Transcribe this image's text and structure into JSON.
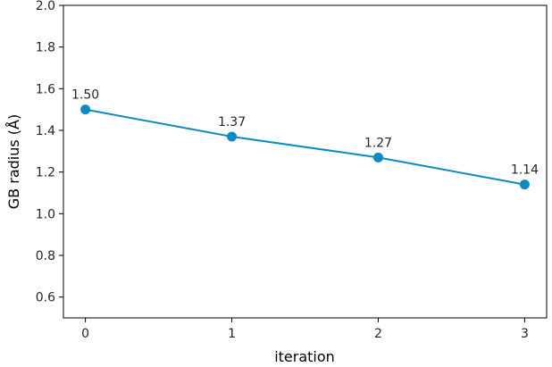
{
  "chart_data": {
    "type": "line",
    "title": "",
    "xlabel": "iteration",
    "ylabel": "GB radius (Å)",
    "x": [
      0,
      1,
      2,
      3
    ],
    "series": [
      {
        "values": [
          1.5,
          1.37,
          1.27,
          1.14
        ],
        "data_labels": [
          "1.50",
          "1.37",
          "1.27",
          "1.14"
        ],
        "color": "#0c8ac4",
        "marker": "circle"
      }
    ],
    "xlim": [
      -0.15,
      3.15
    ],
    "ylim": [
      0.5,
      2.0
    ],
    "x_ticks": [
      0,
      1,
      2,
      3
    ],
    "x_tick_labels": [
      "0",
      "1",
      "2",
      "3"
    ],
    "y_ticks": [
      0.6,
      0.8,
      1.0,
      1.2,
      1.4,
      1.6,
      1.8,
      2.0
    ],
    "y_tick_labels": [
      "0.6",
      "0.8",
      "1.0",
      "1.2",
      "1.4",
      "1.6",
      "1.8",
      "2.0"
    ],
    "grid": false,
    "legend": "none"
  }
}
